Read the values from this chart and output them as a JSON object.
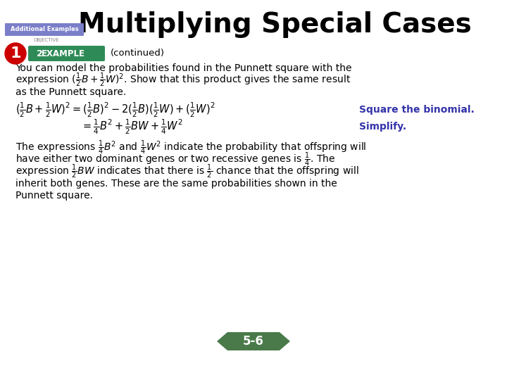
{
  "title": "Multiplying Special Cases",
  "background_color": "#ffffff",
  "title_fontsize": 28,
  "title_color": "#000000",
  "additional_examples_label": "Additional Examples",
  "additional_examples_bg": "#7B7EC8",
  "additional_examples_color": "#ffffff",
  "objective_label": "OBJECTIVE",
  "objective_number": "1",
  "example_number": "2",
  "example_label": "EXAMPLE",
  "example_bg": "#2E8B57",
  "continued_text": "(continued)",
  "body_text1": "You can model the probabilities found in the Punnett square with the",
  "body_text3": "as the Punnett square.",
  "eq1_right": "Square the binomial.",
  "eq2_right": "Simplify.",
  "body2_text4": "inherit both genes. These are the same probabilities shown in the",
  "body2_text5": "Punnett square.",
  "page_label": "5-6",
  "blue_color": "#3333AA",
  "red_color": "#CC0000",
  "nav_bg": "#4A7A4A"
}
